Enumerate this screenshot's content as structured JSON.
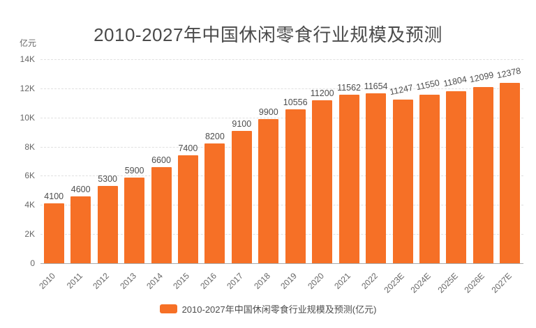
{
  "title": {
    "text": "2010-2027年中国休闲零食行业规模及预测"
  },
  "y_axis": {
    "unit_label": "亿元",
    "ticks_top_to_bottom": [
      "14K",
      "12K",
      "10K",
      "8K",
      "6K",
      "4K",
      "2K",
      "0"
    ]
  },
  "legend": {
    "label": "2010-2027年中国休闲零食行业规模及预测(亿元)"
  },
  "colors": {
    "bar": "#F67026",
    "title_text": "#4a4a4a",
    "axis_label": "#666666",
    "value_label": "#4d4d4d",
    "gridline": "#e0e0e0",
    "axis_line": "#aaaaaa",
    "background": "#ffffff"
  },
  "chart_data": {
    "type": "bar",
    "title": "2010-2027年中国休闲零食行业规模及预测",
    "unit": "亿元",
    "categories": [
      "2010",
      "2011",
      "2012",
      "2013",
      "2014",
      "2015",
      "2016",
      "2017",
      "2018",
      "2019",
      "2020",
      "2021",
      "2022",
      "2023E",
      "2024E",
      "2025E",
      "2026E",
      "2027E"
    ],
    "values": [
      4100,
      4600,
      5300,
      5900,
      6600,
      7400,
      8200,
      9100,
      9900,
      10556,
      11200,
      11562,
      11654,
      11247,
      11550,
      11804,
      12099,
      12378
    ],
    "ylim": [
      0,
      14000
    ],
    "ytick_step": 2000,
    "grid": "horizontal-dashed",
    "legend_position": "bottom",
    "value_labels": "above-bars",
    "rotated_value_labels_from_index": 13,
    "xtick_rotation_deg": -45
  }
}
